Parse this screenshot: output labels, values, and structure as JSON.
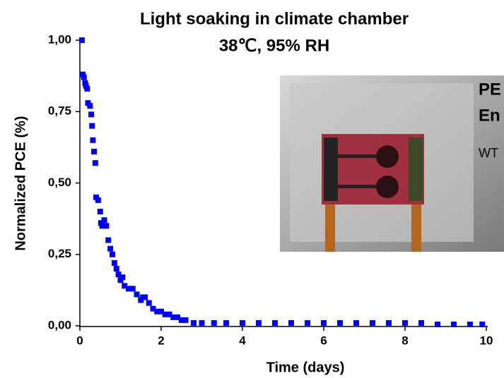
{
  "chart_data": {
    "type": "scatter",
    "title": "Light soaking in climate chamber",
    "subtitle": "38℃, 95% RH",
    "x_label": "Time (days)",
    "y_label": "Normalized PCE (%)",
    "annotations": [
      "PE",
      "En",
      "WT"
    ],
    "color": "#0000ff",
    "x": [
      0.05,
      0.07,
      0.1,
      0.13,
      0.15,
      0.18,
      0.2,
      0.25,
      0.28,
      0.3,
      0.32,
      0.35,
      0.38,
      0.4,
      0.45,
      0.5,
      0.52,
      0.55,
      0.6,
      0.65,
      0.7,
      0.75,
      0.8,
      0.85,
      0.9,
      0.95,
      1.0,
      1.05,
      1.1,
      1.2,
      1.3,
      1.4,
      1.5,
      1.55,
      1.6,
      1.7,
      1.8,
      1.9,
      2.0,
      2.1,
      2.2,
      2.3,
      2.4,
      2.5,
      2.6,
      2.8,
      3.0,
      3.3,
      3.6,
      4.0,
      4.4,
      4.8,
      5.2,
      5.6,
      6.0,
      6.4,
      6.8,
      7.2,
      7.6,
      8.0,
      8.4,
      8.8,
      9.2,
      9.6,
      9.9
    ],
    "values": [
      1.0,
      0.88,
      0.87,
      0.85,
      0.84,
      0.83,
      0.78,
      0.77,
      0.74,
      0.7,
      0.65,
      0.61,
      0.57,
      0.45,
      0.44,
      0.4,
      0.36,
      0.35,
      0.37,
      0.35,
      0.3,
      0.27,
      0.25,
      0.22,
      0.2,
      0.18,
      0.16,
      0.17,
      0.14,
      0.13,
      0.13,
      0.11,
      0.09,
      0.1,
      0.1,
      0.08,
      0.06,
      0.05,
      0.05,
      0.04,
      0.04,
      0.03,
      0.03,
      0.02,
      0.02,
      0.01,
      0.01,
      0.01,
      0.01,
      0.01,
      0.01,
      0.01,
      0.01,
      0.01,
      0.01,
      0.01,
      0.01,
      0.01,
      0.01,
      0.01,
      0.01,
      0.005,
      0.005,
      0.005,
      0.005
    ],
    "xlim": [
      0,
      10
    ],
    "xticks": [
      0,
      2,
      4,
      6,
      8,
      10
    ],
    "ylim": [
      0,
      1
    ],
    "yticks": [
      {
        "value": 0,
        "label": "0,00"
      },
      {
        "value": 0.25,
        "label": "0,25"
      },
      {
        "value": 0.5,
        "label": "0,50"
      },
      {
        "value": 0.75,
        "label": "0,75"
      },
      {
        "value": 1,
        "label": "1,00"
      }
    ]
  }
}
